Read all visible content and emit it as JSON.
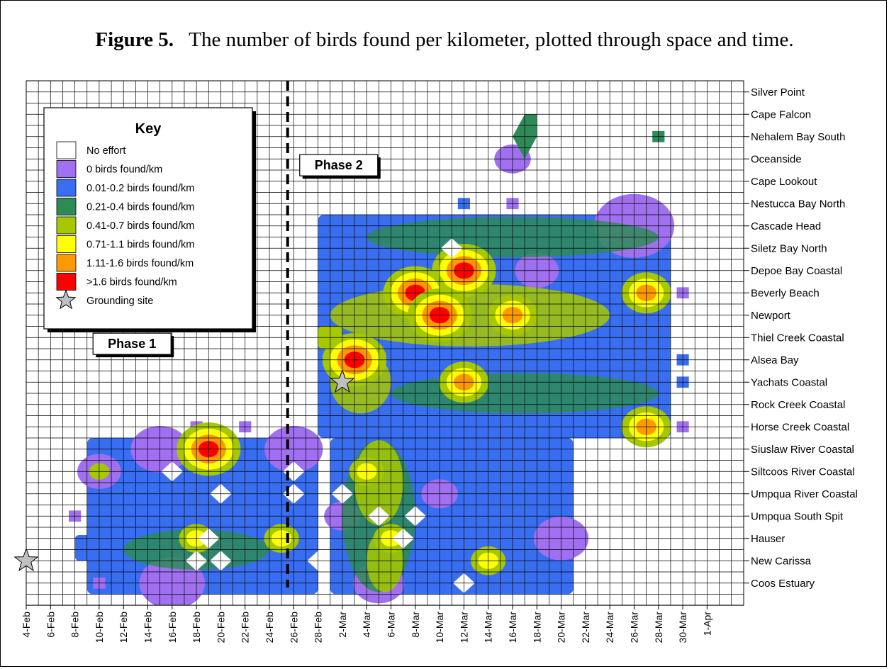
{
  "figure": {
    "label": "Figure 5.",
    "caption": "The number of birds found per kilometer, plotted through space and time."
  },
  "chart_data": {
    "type": "heatmap",
    "title": "",
    "xlabel": "",
    "ylabel": "",
    "grid": true,
    "x_dates": [
      "4-Feb",
      "6-Feb",
      "8-Feb",
      "10-Feb",
      "12-Feb",
      "14-Feb",
      "16-Feb",
      "18-Feb",
      "20-Feb",
      "22-Feb",
      "24-Feb",
      "26-Feb",
      "28-Feb",
      "2-Mar",
      "4-Mar",
      "6-Mar",
      "8-Mar",
      "10-Mar",
      "12-Mar",
      "14-Mar",
      "16-Mar",
      "18-Mar",
      "20-Mar",
      "22-Mar",
      "24-Mar",
      "26-Mar",
      "28-Mar",
      "30-Mar",
      "1-Apr"
    ],
    "y_sites": [
      "Silver Point",
      "Cape Falcon",
      "Nehalem Bay South",
      "Oceanside",
      "Cape Lookout",
      "Nestucca Bay North",
      "Cascade Head",
      "Siletz Bay North",
      "Depoe Bay Coastal",
      "Beverly Beach",
      "Newport",
      "Thiel Creek Coastal",
      "Alsea Bay",
      "Yachats Coastal",
      "Rock Creek Coastal",
      "Horse Creek Coastal",
      "Siuslaw River Coastal",
      "Siltcoos River Coastal",
      "Umpqua River Coastal",
      "Umpqua South Spit",
      "Hauser",
      "New Carissa",
      "Coos Estuary"
    ],
    "legend": {
      "title": "Key",
      "placement": "top-left",
      "entries": [
        {
          "label": "No effort",
          "color": "#ffffff"
        },
        {
          "label": "0 birds found/km",
          "color": "#a070f0"
        },
        {
          "label": "0.01-0.2 birds found/km",
          "color": "#3a6ef0"
        },
        {
          "label": "0.21-0.4 birds found/km",
          "color": "#2e8b57"
        },
        {
          "label": "0.41-0.7 birds found/km",
          "color": "#a6c800"
        },
        {
          "label": "0.71-1.1 birds found/km",
          "color": "#ffff00"
        },
        {
          "label": "1.11-1.6 birds found/km",
          "color": "#ff9900"
        },
        {
          "label": ">1.6 birds found/km",
          "color": "#ff0000"
        },
        {
          "label": "Grounding site",
          "color": "#c0c0c0",
          "icon": "star-icon"
        }
      ]
    },
    "annotations": [
      {
        "text": "Phase 1"
      },
      {
        "text": "Phase 2"
      }
    ],
    "phase_divider_date": "25-Feb",
    "grounding_sites": [
      {
        "date": "4-Feb",
        "site": "New Carissa"
      },
      {
        "date": "2-Mar",
        "site": "Yachats Coastal"
      }
    ],
    "series": [
      {
        "period": "Phase 1",
        "start": "9-Feb",
        "end": "28-Feb",
        "north_site": "Siuslaw River Coastal",
        "south_site": "Coos Estuary",
        "predominant_level": "0.01-0.2 birds found/km",
        "peaks": [
          {
            "date": "19-Feb",
            "site": "Siuslaw River Coastal",
            "level": ">1.6 birds found/km"
          },
          {
            "date": "18-Feb",
            "site": "Hauser",
            "level": "0.71-1.1 birds found/km"
          },
          {
            "date": "25-Feb",
            "site": "Hauser",
            "level": "0.71-1.1 birds found/km"
          },
          {
            "date": "10-Feb",
            "site": "Siltcoos River Coastal",
            "level": "0.41-0.7 birds found/km"
          }
        ]
      },
      {
        "period": "Phase 2 north",
        "start": "28-Feb",
        "end": "29-Mar",
        "north_site": "Cascade Head",
        "south_site": "Horse Creek Coastal",
        "predominant_level": "0.01-0.2 birds found/km",
        "peaks": [
          {
            "date": "12-Mar",
            "site": "Depoe Bay Coastal",
            "level": ">1.6 birds found/km"
          },
          {
            "date": "8-Mar",
            "site": "Beverly Beach",
            "level": ">1.6 birds found/km"
          },
          {
            "date": "10-Mar",
            "site": "Newport",
            "level": ">1.6 birds found/km"
          },
          {
            "date": "3-Mar",
            "site": "Alsea Bay",
            "level": ">1.6 birds found/km"
          },
          {
            "date": "16-Mar",
            "site": "Newport",
            "level": "1.11-1.6 birds found/km"
          },
          {
            "date": "27-Mar",
            "site": "Beverly Beach",
            "level": "1.11-1.6 birds found/km"
          },
          {
            "date": "27-Mar",
            "site": "Horse Creek Coastal",
            "level": "1.11-1.6 birds found/km"
          },
          {
            "date": "12-Mar",
            "site": "Yachats Coastal",
            "level": "1.11-1.6 birds found/km"
          }
        ]
      },
      {
        "period": "Phase 2 south",
        "start": "1-Mar",
        "end": "21-Mar",
        "north_site": "Siuslaw River Coastal",
        "south_site": "Coos Estuary",
        "predominant_level": "0.01-0.2 birds found/km",
        "peaks": [
          {
            "date": "4-Mar",
            "site": "Siltcoos River Coastal",
            "level": "0.71-1.1 birds found/km"
          },
          {
            "date": "6-Mar",
            "site": "Hauser",
            "level": "0.71-1.1 birds found/km"
          },
          {
            "date": "14-Mar",
            "site": "New Carissa",
            "level": "0.71-1.1 birds found/km"
          }
        ]
      }
    ]
  }
}
